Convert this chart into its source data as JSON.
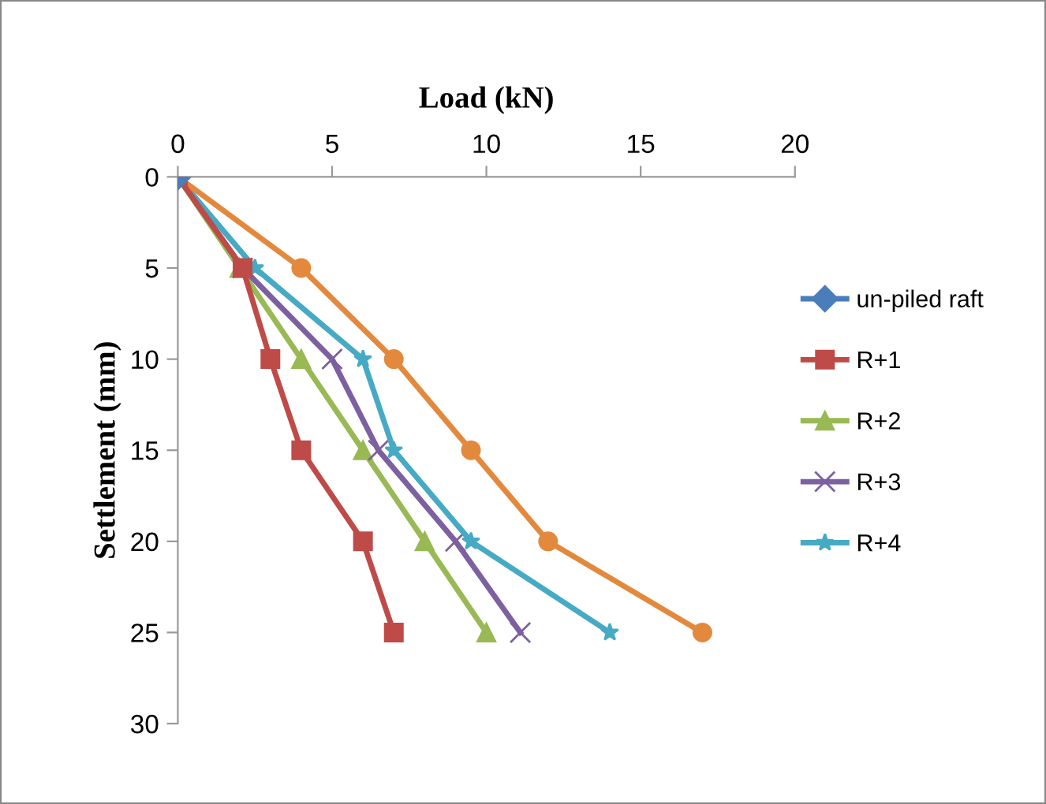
{
  "chart_data": {
    "type": "line",
    "xlabel": "Load (kN)",
    "ylabel": "Settlement (mm)",
    "xlim": [
      0,
      20
    ],
    "xticks": [
      0,
      5,
      10,
      15,
      20
    ],
    "ylim": [
      30,
      0
    ],
    "yticks": [
      0,
      5,
      10,
      15,
      20,
      25,
      30
    ],
    "grid": false,
    "legend": "right",
    "line_style": "solid",
    "series": [
      {
        "name": "un-piled raft",
        "color": "#4a7ebb",
        "marker": "diamond",
        "x": [
          0
        ],
        "values": [
          0
        ]
      },
      {
        "name": "R+1",
        "color": "#be4b48",
        "marker": "square",
        "x": [
          0,
          2.1,
          3,
          4,
          6,
          7
        ],
        "values": [
          0,
          5,
          10,
          15,
          20,
          25
        ]
      },
      {
        "name": "R+2",
        "color": "#98b954",
        "marker": "triangle",
        "x": [
          0,
          2,
          4,
          6,
          8,
          10
        ],
        "values": [
          0,
          5,
          10,
          15,
          20,
          25
        ]
      },
      {
        "name": "R+3",
        "color": "#7d60a0",
        "marker": "cross",
        "x": [
          0,
          2.1,
          5,
          6.5,
          9,
          11.1
        ],
        "values": [
          0,
          5,
          10,
          15,
          20,
          25
        ]
      },
      {
        "name": "R+4",
        "color": "#46aac5",
        "marker": "star",
        "x": [
          0,
          2.5,
          6,
          7,
          9.5,
          14
        ],
        "values": [
          0,
          5,
          10,
          15,
          20,
          25
        ]
      },
      {
        "color": "#e3893d",
        "marker": "circle",
        "x": [
          0,
          4,
          7,
          9.5,
          12,
          17
        ],
        "values": [
          0,
          5,
          10,
          15,
          20,
          25
        ]
      }
    ]
  }
}
